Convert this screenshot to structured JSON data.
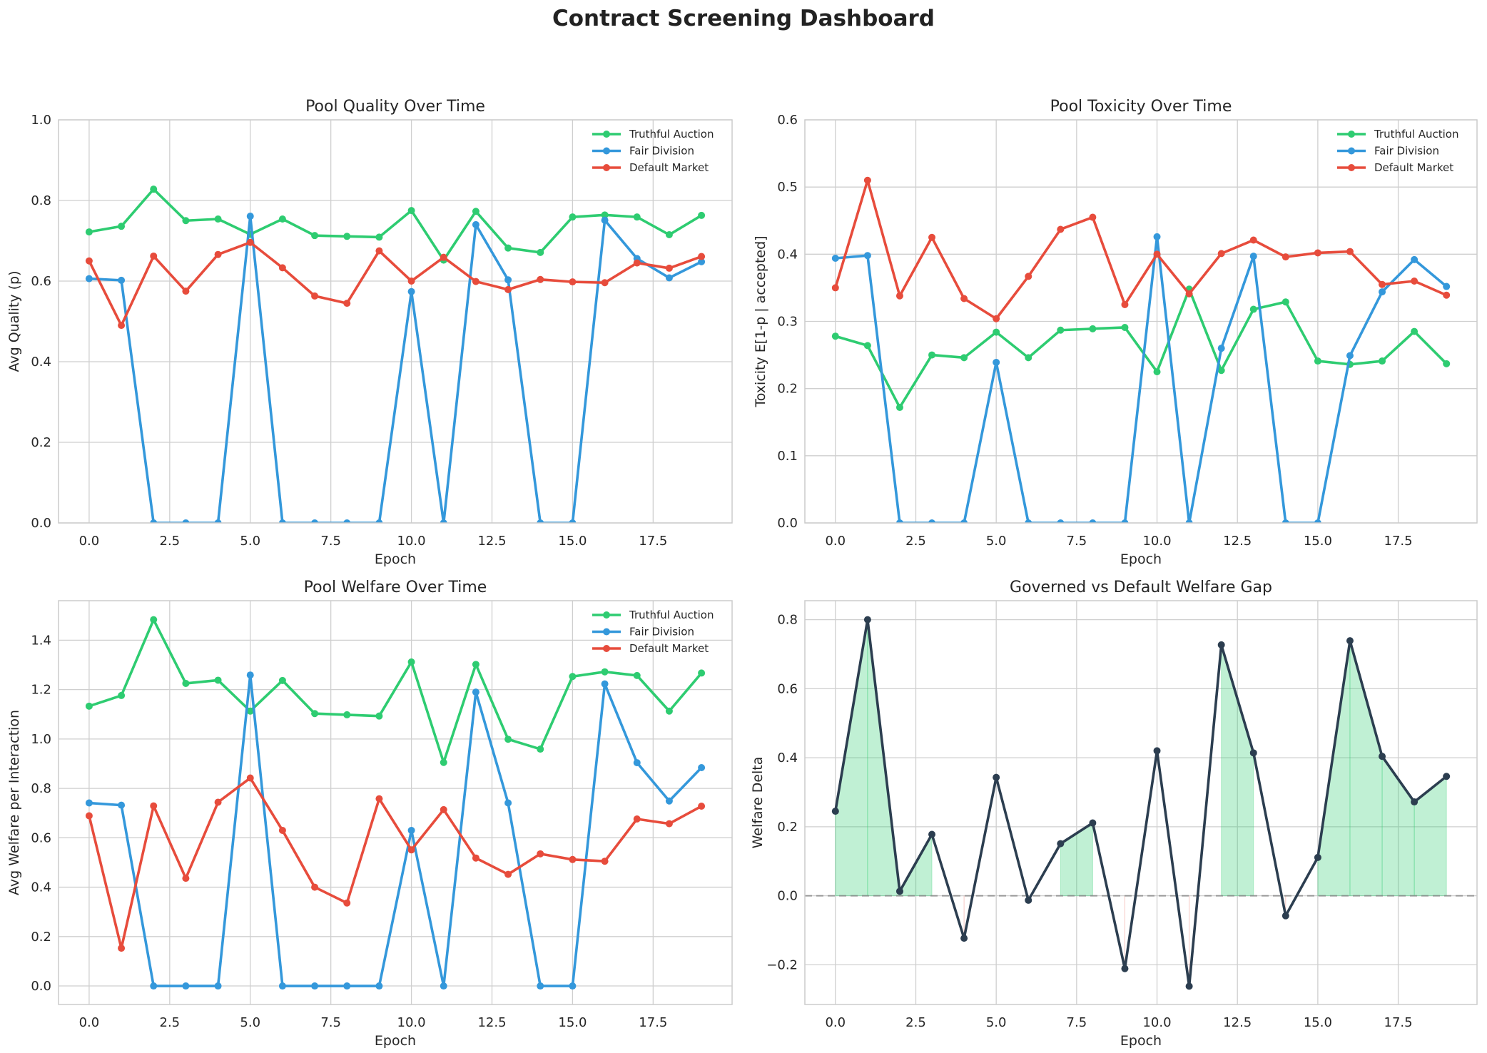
{
  "figure": {
    "title": "Contract Screening Dashboard"
  },
  "colors": {
    "truthful": "#2ecc71",
    "fair": "#3498db",
    "default": "#e74c3c",
    "gap": "#2c3e50",
    "fill_pos": "#2ecc71",
    "fill_neg": "#e74c3c"
  },
  "chart_data": [
    {
      "id": "quality",
      "type": "line",
      "title": "Pool Quality Over Time",
      "xlabel": "Epoch",
      "ylabel": "Avg Quality (p)",
      "xlim": [
        -0.95,
        19.95
      ],
      "ylim": [
        0,
        1.0
      ],
      "xticks": [
        0.0,
        2.5,
        5.0,
        7.5,
        10.0,
        12.5,
        15.0,
        17.5
      ],
      "xtick_labels": [
        "0.0",
        "2.5",
        "5.0",
        "7.5",
        "10.0",
        "12.5",
        "15.0",
        "17.5"
      ],
      "yticks": [
        0.0,
        0.2,
        0.4,
        0.6,
        0.8,
        1.0
      ],
      "ytick_labels": [
        "0.0",
        "0.2",
        "0.4",
        "0.6",
        "0.8",
        "1.0"
      ],
      "grid": true,
      "legend_position": "upper-right",
      "x": [
        0,
        1,
        2,
        3,
        4,
        5,
        6,
        7,
        8,
        9,
        10,
        11,
        12,
        13,
        14,
        15,
        16,
        17,
        18,
        19
      ],
      "series": [
        {
          "name": "Truthful Auction",
          "color": "#2ecc71",
          "values": [
            0.722,
            0.736,
            0.828,
            0.75,
            0.754,
            0.716,
            0.754,
            0.713,
            0.711,
            0.709,
            0.775,
            0.652,
            0.773,
            0.682,
            0.671,
            0.759,
            0.764,
            0.759,
            0.715,
            0.763
          ]
        },
        {
          "name": "Fair Division",
          "color": "#3498db",
          "values": [
            0.606,
            0.602,
            0.0,
            0.0,
            0.0,
            0.761,
            0.0,
            0.0,
            0.0,
            0.0,
            0.574,
            0.0,
            0.74,
            0.603,
            0.0,
            0.0,
            0.751,
            0.656,
            0.608,
            0.648
          ]
        },
        {
          "name": "Default Market",
          "color": "#e74c3c",
          "values": [
            0.65,
            0.49,
            0.662,
            0.575,
            0.666,
            0.696,
            0.633,
            0.563,
            0.545,
            0.675,
            0.6,
            0.659,
            0.599,
            0.579,
            0.604,
            0.598,
            0.596,
            0.645,
            0.632,
            0.661
          ]
        }
      ]
    },
    {
      "id": "toxicity",
      "type": "line",
      "title": "Pool Toxicity Over Time",
      "xlabel": "Epoch",
      "ylabel": "Toxicity E[1-p | accepted]",
      "xlim": [
        -0.95,
        19.95
      ],
      "ylim": [
        0,
        0.6
      ],
      "xticks": [
        0.0,
        2.5,
        5.0,
        7.5,
        10.0,
        12.5,
        15.0,
        17.5
      ],
      "xtick_labels": [
        "0.0",
        "2.5",
        "5.0",
        "7.5",
        "10.0",
        "12.5",
        "15.0",
        "17.5"
      ],
      "yticks": [
        0.0,
        0.1,
        0.2,
        0.3,
        0.4,
        0.5,
        0.6
      ],
      "ytick_labels": [
        "0.0",
        "0.1",
        "0.2",
        "0.3",
        "0.4",
        "0.5",
        "0.6"
      ],
      "grid": true,
      "legend_position": "upper-right",
      "x": [
        0,
        1,
        2,
        3,
        4,
        5,
        6,
        7,
        8,
        9,
        10,
        11,
        12,
        13,
        14,
        15,
        16,
        17,
        18,
        19
      ],
      "series": [
        {
          "name": "Truthful Auction",
          "color": "#2ecc71",
          "values": [
            0.278,
            0.264,
            0.172,
            0.25,
            0.246,
            0.284,
            0.246,
            0.287,
            0.289,
            0.291,
            0.225,
            0.348,
            0.227,
            0.318,
            0.329,
            0.241,
            0.236,
            0.241,
            0.285,
            0.237
          ]
        },
        {
          "name": "Fair Division",
          "color": "#3498db",
          "values": [
            0.394,
            0.398,
            0.0,
            0.0,
            0.0,
            0.239,
            0.0,
            0.0,
            0.0,
            0.0,
            0.426,
            0.0,
            0.26,
            0.397,
            0.0,
            0.0,
            0.249,
            0.344,
            0.392,
            0.352
          ]
        },
        {
          "name": "Default Market",
          "color": "#e74c3c",
          "values": [
            0.35,
            0.51,
            0.338,
            0.425,
            0.334,
            0.304,
            0.367,
            0.437,
            0.455,
            0.325,
            0.4,
            0.341,
            0.401,
            0.421,
            0.396,
            0.402,
            0.404,
            0.355,
            0.36,
            0.339
          ]
        }
      ]
    },
    {
      "id": "welfare",
      "type": "line",
      "title": "Pool Welfare Over Time",
      "xlabel": "Epoch",
      "ylabel": "Avg Welfare per Interaction",
      "xlim": [
        -0.95,
        19.95
      ],
      "ylim": [
        -0.075,
        1.56
      ],
      "xticks": [
        0.0,
        2.5,
        5.0,
        7.5,
        10.0,
        12.5,
        15.0,
        17.5
      ],
      "xtick_labels": [
        "0.0",
        "2.5",
        "5.0",
        "7.5",
        "10.0",
        "12.5",
        "15.0",
        "17.5"
      ],
      "yticks": [
        0.0,
        0.2,
        0.4,
        0.6,
        0.8,
        1.0,
        1.2,
        1.4
      ],
      "ytick_labels": [
        "0.0",
        "0.2",
        "0.4",
        "0.6",
        "0.8",
        "1.0",
        "1.2",
        "1.4"
      ],
      "grid": true,
      "legend_position": "upper-right",
      "x": [
        0,
        1,
        2,
        3,
        4,
        5,
        6,
        7,
        8,
        9,
        10,
        11,
        12,
        13,
        14,
        15,
        16,
        17,
        18,
        19
      ],
      "series": [
        {
          "name": "Truthful Auction",
          "color": "#2ecc71",
          "values": [
            1.133,
            1.176,
            1.483,
            1.225,
            1.238,
            1.113,
            1.237,
            1.103,
            1.098,
            1.093,
            1.312,
            0.905,
            1.302,
            0.999,
            0.959,
            1.253,
            1.272,
            1.257,
            1.113,
            1.267
          ]
        },
        {
          "name": "Fair Division",
          "color": "#3498db",
          "values": [
            0.741,
            0.732,
            0.0,
            0.0,
            0.0,
            1.259,
            0.0,
            0.0,
            0.0,
            0.0,
            0.63,
            0.0,
            1.19,
            0.741,
            0.0,
            0.0,
            1.223,
            0.904,
            0.749,
            0.884
          ]
        },
        {
          "name": "Default Market",
          "color": "#e74c3c",
          "values": [
            0.689,
            0.153,
            0.729,
            0.436,
            0.744,
            0.842,
            0.63,
            0.4,
            0.336,
            0.758,
            0.551,
            0.714,
            0.518,
            0.452,
            0.535,
            0.512,
            0.505,
            0.676,
            0.657,
            0.728
          ]
        }
      ]
    },
    {
      "id": "gap",
      "type": "line",
      "title": "Governed vs Default Welfare Gap",
      "xlabel": "Epoch",
      "ylabel": "Welfare Delta",
      "xlim": [
        -0.95,
        19.95
      ],
      "ylim": [
        -0.315,
        0.855
      ],
      "xticks": [
        0.0,
        2.5,
        5.0,
        7.5,
        10.0,
        12.5,
        15.0,
        17.5
      ],
      "xtick_labels": [
        "0.0",
        "2.5",
        "5.0",
        "7.5",
        "10.0",
        "12.5",
        "15.0",
        "17.5"
      ],
      "yticks": [
        -0.2,
        0.0,
        0.2,
        0.4,
        0.6,
        0.8
      ],
      "ytick_labels": [
        "−0.2",
        "0.0",
        "0.2",
        "0.4",
        "0.6",
        "0.8"
      ],
      "grid": true,
      "zero_line": true,
      "fill_between_zero": true,
      "x": [
        0,
        1,
        2,
        3,
        4,
        5,
        6,
        7,
        8,
        9,
        10,
        11,
        12,
        13,
        14,
        15,
        16,
        17,
        18,
        19
      ],
      "series": [
        {
          "color": "#2c3e50",
          "values": [
            0.245,
            0.8,
            0.013,
            0.178,
            -0.123,
            0.343,
            -0.013,
            0.151,
            0.211,
            -0.211,
            0.42,
            -0.262,
            0.727,
            0.414,
            -0.058,
            0.111,
            0.739,
            0.404,
            0.272,
            0.346
          ]
        }
      ]
    }
  ]
}
